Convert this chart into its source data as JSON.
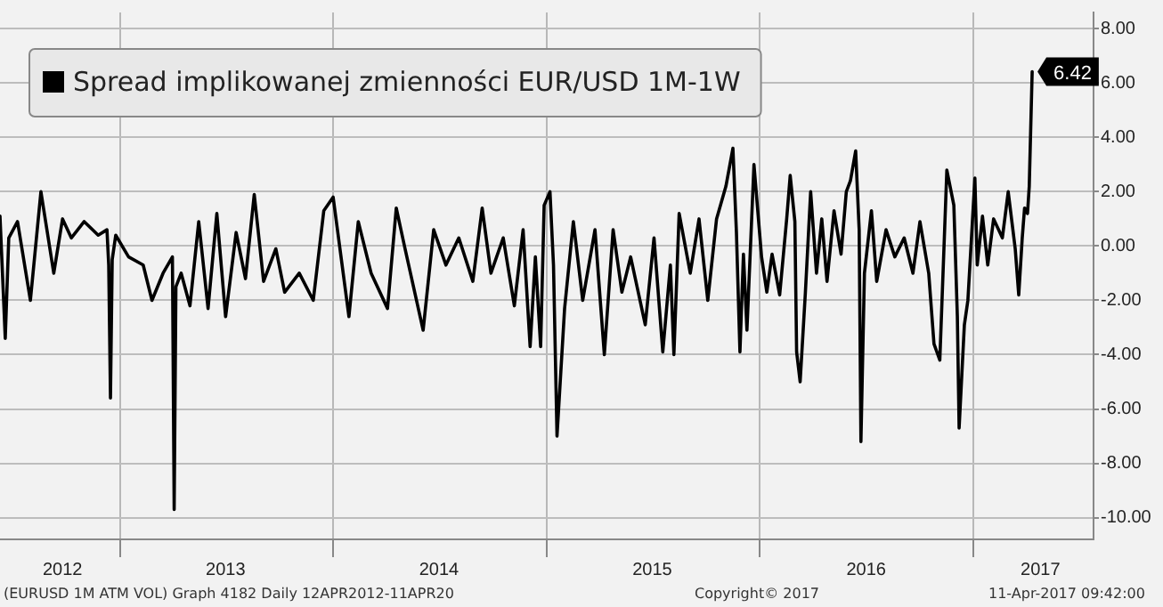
{
  "chart_data": {
    "type": "line",
    "legend": "top left",
    "grid": true,
    "marker": "none",
    "line_style": "solid",
    "xlim": [
      "2012-06-10",
      "2017-07-25"
    ],
    "xticks": [
      {
        "value": "2012-09-25",
        "label": "2012"
      },
      {
        "value": "2013-01-01",
        "label": null
      },
      {
        "value": "2013-07-01",
        "label": "2013"
      },
      {
        "value": "2014-01-01",
        "label": null
      },
      {
        "value": "2014-07-01",
        "label": "2014"
      },
      {
        "value": "2015-01-01",
        "label": null
      },
      {
        "value": "2015-07-01",
        "label": "2015"
      },
      {
        "value": "2016-01-01",
        "label": null
      },
      {
        "value": "2016-07-01",
        "label": "2016"
      },
      {
        "value": "2017-01-01",
        "label": null
      },
      {
        "value": "2017-04-25",
        "label": "2017"
      }
    ],
    "ylim": [
      -10.8,
      8.6
    ],
    "yticks": [
      {
        "value": -10,
        "label": "-10.00"
      },
      {
        "value": -8,
        "label": "-8.00"
      },
      {
        "value": -6,
        "label": "-6.00"
      },
      {
        "value": -4,
        "label": "-4.00"
      },
      {
        "value": -2,
        "label": "-2.00"
      },
      {
        "value": 0,
        "label": "0.00"
      },
      {
        "value": 2,
        "label": "2.00"
      },
      {
        "value": 4,
        "label": "4.00"
      },
      {
        "value": 6,
        "label": "6.00"
      },
      {
        "value": 8,
        "label": "8.00"
      }
    ],
    "annotations": [
      {
        "text": "6.42",
        "x": "2017-04-11",
        "y": 6.42
      },
      "(EURUSD 1M ATM VOL) Graph 4182  Daily 12APR2012-11APR20",
      "Copyright© 2017",
      "11-Apr-2017 09:42:00"
    ],
    "series": [
      {
        "name": "Spread implikowanej zmienności EUR/USD 1M-1W",
        "color": "#000000",
        "x": [
          "2012-06-10",
          "2012-06-19",
          "2012-06-25",
          "2012-07-10",
          "2012-08-01",
          "2012-08-19",
          "2012-09-10",
          "2012-09-25",
          "2012-10-10",
          "2012-11-01",
          "2012-11-25",
          "2012-12-10",
          "2012-12-13",
          "2012-12-16",
          "2012-12-19",
          "2012-12-25",
          "2013-01-16",
          "2013-02-10",
          "2013-02-25",
          "2013-03-16",
          "2013-04-01",
          "2013-04-04",
          "2013-04-07",
          "2013-04-16",
          "2013-05-01",
          "2013-05-16",
          "2013-06-01",
          "2013-06-16",
          "2013-07-01",
          "2013-07-19",
          "2013-08-04",
          "2013-08-19",
          "2013-09-04",
          "2013-09-25",
          "2013-10-10",
          "2013-11-04",
          "2013-11-28",
          "2013-12-16",
          "2014-01-01",
          "2014-01-28",
          "2014-02-13",
          "2014-03-07",
          "2014-04-04",
          "2014-04-19",
          "2014-05-04",
          "2014-06-04",
          "2014-06-22",
          "2014-07-13",
          "2014-08-04",
          "2014-08-28",
          "2014-09-13",
          "2014-09-28",
          "2014-10-19",
          "2014-11-07",
          "2014-11-22",
          "2014-12-04",
          "2014-12-13",
          "2014-12-22",
          "2014-12-28",
          "2015-01-07",
          "2015-01-13",
          "2015-01-19",
          "2015-02-01",
          "2015-02-16",
          "2015-03-04",
          "2015-03-25",
          "2015-04-10",
          "2015-04-25",
          "2015-05-10",
          "2015-05-25",
          "2015-06-19",
          "2015-07-04",
          "2015-07-19",
          "2015-08-01",
          "2015-08-07",
          "2015-08-16",
          "2015-09-04",
          "2015-09-19",
          "2015-10-04",
          "2015-10-19",
          "2015-11-04",
          "2015-11-16",
          "2015-11-22",
          "2015-11-28",
          "2015-12-04",
          "2015-12-10",
          "2015-12-22",
          "2016-01-04",
          "2016-01-13",
          "2016-01-22",
          "2016-02-04",
          "2016-02-16",
          "2016-02-22",
          "2016-03-01",
          "2016-03-04",
          "2016-03-10",
          "2016-03-19",
          "2016-03-28",
          "2016-04-07",
          "2016-04-16",
          "2016-04-25",
          "2016-05-07",
          "2016-05-19",
          "2016-05-28",
          "2016-06-04",
          "2016-06-13",
          "2016-06-19",
          "2016-06-22",
          "2016-06-28",
          "2016-07-10",
          "2016-07-19",
          "2016-08-04",
          "2016-08-19",
          "2016-09-04",
          "2016-09-19",
          "2016-10-01",
          "2016-10-16",
          "2016-10-25",
          "2016-11-04",
          "2016-11-16",
          "2016-11-28",
          "2016-12-04",
          "2016-12-07",
          "2016-12-16",
          "2016-12-22",
          "2017-01-03",
          "2017-01-07",
          "2017-01-16",
          "2017-01-25",
          "2017-02-04",
          "2017-02-19",
          "2017-03-01",
          "2017-03-13",
          "2017-03-19",
          "2017-03-25",
          "2017-03-29",
          "2017-04-03",
          "2017-04-06",
          "2017-04-11"
        ],
        "values": [
          1.1,
          -3.4,
          0.3,
          0.9,
          -2.0,
          2.0,
          -1.0,
          1.0,
          0.3,
          0.9,
          0.4,
          0.6,
          -0.7,
          -5.6,
          -0.5,
          0.4,
          -0.4,
          -0.7,
          -2.0,
          -1.0,
          -0.4,
          -9.7,
          -1.5,
          -1.0,
          -2.2,
          0.9,
          -2.3,
          1.2,
          -2.6,
          0.5,
          -1.2,
          1.9,
          -1.3,
          -0.1,
          -1.7,
          -1.0,
          -2.0,
          1.3,
          1.8,
          -2.6,
          0.9,
          -1.0,
          -2.3,
          1.4,
          -0.1,
          -3.1,
          0.6,
          -0.7,
          0.3,
          -1.3,
          1.4,
          -1.0,
          0.3,
          -2.2,
          0.6,
          -3.7,
          -0.4,
          -3.7,
          1.5,
          2.0,
          -0.7,
          -7.0,
          -2.3,
          0.9,
          -2.0,
          0.6,
          -4.0,
          0.6,
          -1.7,
          -0.4,
          -2.9,
          0.3,
          -3.9,
          -0.7,
          -4.0,
          1.2,
          -1.0,
          1.0,
          -2.0,
          1.0,
          2.2,
          3.6,
          0.5,
          -3.9,
          -0.3,
          -3.1,
          3.0,
          -0.4,
          -1.7,
          -0.3,
          -1.8,
          1.0,
          2.6,
          0.9,
          -3.9,
          -5.0,
          -1.7,
          2.0,
          -1.0,
          1.0,
          -1.3,
          1.3,
          -0.3,
          2.0,
          2.4,
          3.5,
          0.6,
          -7.2,
          -1.0,
          1.3,
          -1.3,
          0.6,
          -0.4,
          0.3,
          -1.0,
          0.9,
          -1.0,
          -3.6,
          -4.2,
          2.8,
          1.5,
          -2.6,
          -6.7,
          -2.9,
          -2.0,
          2.5,
          -0.7,
          1.1,
          -0.7,
          1.0,
          0.3,
          2.0,
          -0.1,
          -1.8,
          0.3,
          1.4,
          1.2,
          2.2,
          6.42
        ]
      }
    ]
  }
}
